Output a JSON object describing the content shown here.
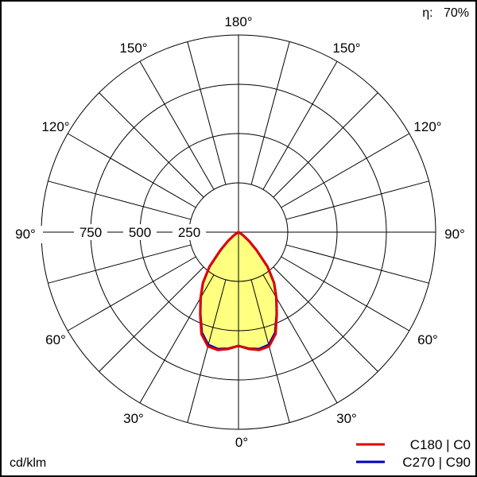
{
  "efficiency": {
    "symbol": "η:",
    "value": "70%"
  },
  "unit_label": "cd/klm",
  "chart_data": {
    "type": "polar",
    "title": "",
    "radial_unit": "cd/klm",
    "radial_ticks": [
      250,
      500,
      750
    ],
    "radial_max": 1000,
    "angle_labels": [
      "180°",
      "150°",
      "150°",
      "120°",
      "120°",
      "90°",
      "90°",
      "60°",
      "60°",
      "30°",
      "30°",
      "0°"
    ],
    "radial_tick_labels": [
      "250",
      "500",
      "750"
    ],
    "angle_step_deg": 15,
    "angles": [
      0,
      5,
      10,
      15,
      20,
      25,
      30,
      35,
      40,
      45,
      50,
      55,
      60,
      65,
      70,
      75,
      80,
      85,
      90
    ],
    "series": [
      {
        "name": "C180 | C0",
        "color": "#e00000",
        "values": [
          577,
          595,
          607,
          600,
          550,
          460,
          385,
          315,
          230,
          130,
          70,
          30,
          10,
          0,
          0,
          0,
          0,
          0,
          0
        ]
      },
      {
        "name": "C270 | C90",
        "color": "#0000c0",
        "values": [
          577,
          593,
          602,
          592,
          543,
          458,
          384,
          314,
          229,
          130,
          70,
          30,
          10,
          0,
          0,
          0,
          0,
          0,
          0
        ]
      }
    ],
    "fill_color": "#ffff80",
    "legend": "bottom-right"
  }
}
